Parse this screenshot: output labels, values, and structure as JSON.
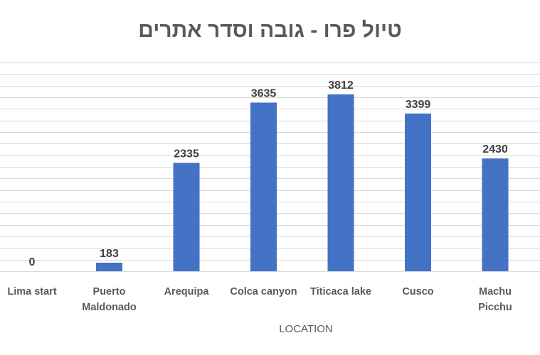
{
  "chart_data": {
    "type": "bar",
    "title": "טיול פרו - גובה וסדר אתרים",
    "xlabel": "LOCATION",
    "ylabel": "",
    "categories": [
      [
        "Lima start"
      ],
      [
        "Puerto",
        "Maldonado"
      ],
      [
        "Arequipa"
      ],
      [
        "Colca canyon"
      ],
      [
        "Titicaca lake"
      ],
      [
        "Cusco"
      ],
      [
        "Machu",
        "Picchu"
      ]
    ],
    "series": [
      {
        "values": [
          0,
          183,
          2335,
          3635,
          3812,
          3399,
          2430
        ]
      }
    ],
    "ylim": [
      0,
      4500
    ],
    "y_axis_visible": false,
    "grid": true,
    "data_labels": true,
    "bar_color": "#4472C4",
    "grid_color": "#D9D9D9"
  }
}
